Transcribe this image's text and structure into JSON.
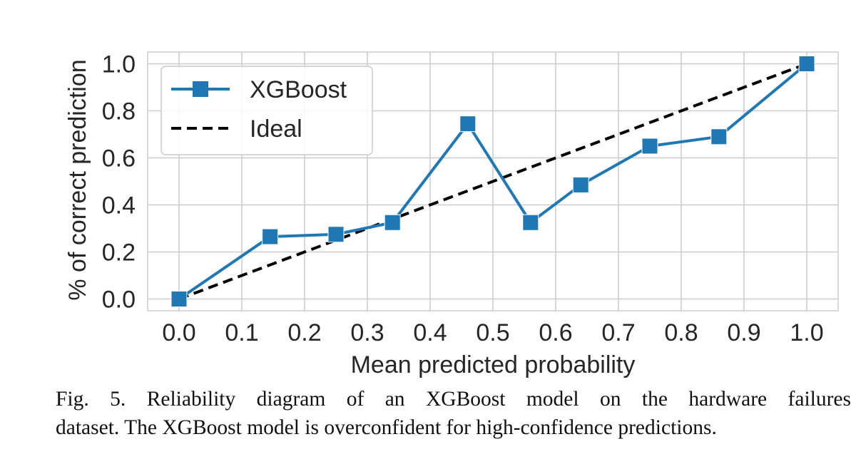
{
  "chart_data": {
    "type": "line",
    "xlabel": "Mean predicted probability",
    "ylabel": "% of correct prediction",
    "xlim": [
      -0.05,
      1.05
    ],
    "ylim": [
      -0.05,
      1.05
    ],
    "x_ticks": [
      "0.0",
      "0.1",
      "0.2",
      "0.3",
      "0.4",
      "0.5",
      "0.6",
      "0.7",
      "0.8",
      "0.9",
      "1.0"
    ],
    "y_ticks": [
      "0.0",
      "0.2",
      "0.4",
      "0.6",
      "0.8",
      "1.0"
    ],
    "grid": true,
    "legend_position": "top-left",
    "series": [
      {
        "name": "XGBoost",
        "style": "solid-square-markers",
        "color": "#1f77b4",
        "x": [
          0.0,
          0.145,
          0.25,
          0.34,
          0.46,
          0.56,
          0.64,
          0.75,
          0.86,
          1.0
        ],
        "y": [
          0.0,
          0.265,
          0.275,
          0.325,
          0.745,
          0.325,
          0.485,
          0.65,
          0.69,
          1.0
        ]
      },
      {
        "name": "Ideal",
        "style": "dashed",
        "color": "#000000",
        "x": [
          0.0,
          1.0
        ],
        "y": [
          0.0,
          1.0
        ]
      }
    ]
  },
  "caption": {
    "line1": "Fig. 5.  Reliability diagram of an XGBoost model on the hardware failures",
    "line2": "dataset. The XGBoost model is overconfident for high-confidence predictions."
  }
}
